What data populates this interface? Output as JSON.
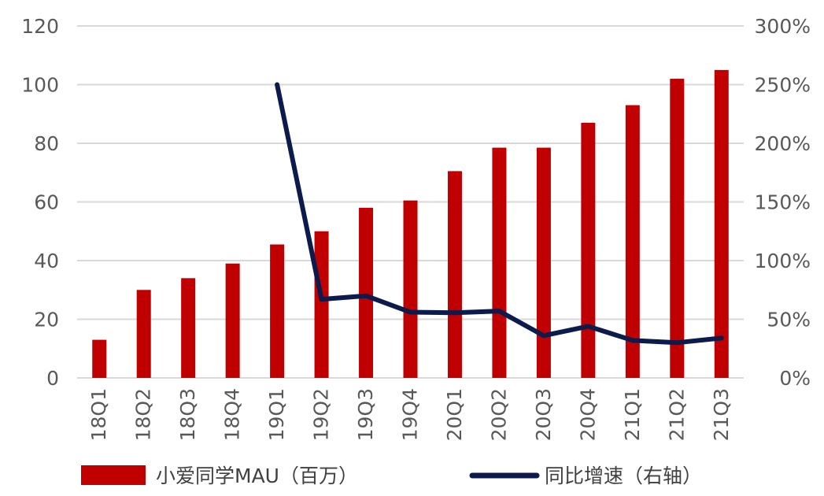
{
  "chart_data": {
    "type": "bar",
    "categories": [
      "18Q1",
      "18Q2",
      "18Q3",
      "18Q4",
      "19Q1",
      "19Q2",
      "19Q3",
      "19Q4",
      "20Q1",
      "20Q2",
      "20Q3",
      "20Q4",
      "21Q1",
      "21Q2",
      "21Q3"
    ],
    "series": [
      {
        "name": "小爱同学MAU（百万）",
        "type": "bar",
        "axis": "left",
        "color": "#C00000",
        "values": [
          13,
          30,
          34,
          39,
          45.5,
          50,
          58,
          60.5,
          70.5,
          78.5,
          78.5,
          87,
          93,
          102,
          105
        ]
      },
      {
        "name": "同比增速（右轴）",
        "type": "line",
        "axis": "right",
        "color": "#0D1B4C",
        "values": [
          null,
          null,
          null,
          null,
          2.5,
          0.67,
          0.7,
          0.56,
          0.555,
          0.57,
          0.36,
          0.44,
          0.32,
          0.3,
          0.34
        ]
      }
    ],
    "y_left": {
      "ylim": [
        0,
        120
      ],
      "ticks": [
        "0",
        "20",
        "40",
        "60",
        "80",
        "100",
        "120"
      ]
    },
    "y_right": {
      "ylim": [
        0,
        3
      ],
      "ticks": [
        "0%",
        "50%",
        "100%",
        "150%",
        "200%",
        "250%",
        "300%"
      ]
    },
    "grid": true,
    "legend_position": "bottom"
  }
}
